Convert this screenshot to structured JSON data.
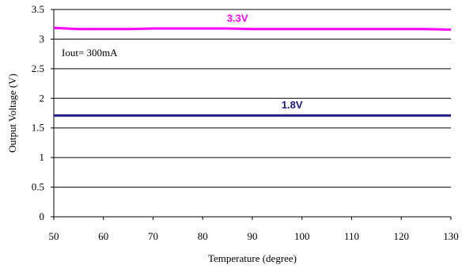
{
  "chart_data": {
    "type": "line",
    "xlabel": "Temperature (degree)",
    "ylabel": "Output Voltage (V)",
    "xlim": [
      50,
      130
    ],
    "ylim": [
      0,
      3.5
    ],
    "x_ticks": [
      50,
      60,
      70,
      80,
      90,
      100,
      110,
      120,
      130
    ],
    "y_ticks": [
      0,
      0.5,
      1,
      1.5,
      2,
      2.5,
      3,
      3.5
    ],
    "y_tick_labels": [
      "0",
      "0.5",
      "1",
      "1.5",
      "2",
      "2.5",
      "3",
      "3.5"
    ],
    "grid": "horizontal",
    "annotation": "Iout= 300mA",
    "series": [
      {
        "name": "3.3V",
        "color": "#FF00FF",
        "x": [
          50,
          55,
          60,
          65,
          70,
          75,
          80,
          85,
          90,
          95,
          100,
          105,
          110,
          115,
          120,
          125,
          130
        ],
        "y": [
          3.19,
          3.17,
          3.17,
          3.17,
          3.18,
          3.18,
          3.18,
          3.18,
          3.17,
          3.17,
          3.17,
          3.17,
          3.17,
          3.17,
          3.17,
          3.17,
          3.16
        ]
      },
      {
        "name": "1.8V",
        "color": "#1A1A80",
        "x": [
          50,
          55,
          60,
          65,
          70,
          75,
          80,
          85,
          90,
          95,
          100,
          105,
          110,
          115,
          120,
          125,
          130
        ],
        "y": [
          1.71,
          1.71,
          1.71,
          1.71,
          1.71,
          1.71,
          1.71,
          1.71,
          1.71,
          1.71,
          1.71,
          1.71,
          1.71,
          1.71,
          1.71,
          1.71,
          1.71
        ]
      }
    ]
  }
}
